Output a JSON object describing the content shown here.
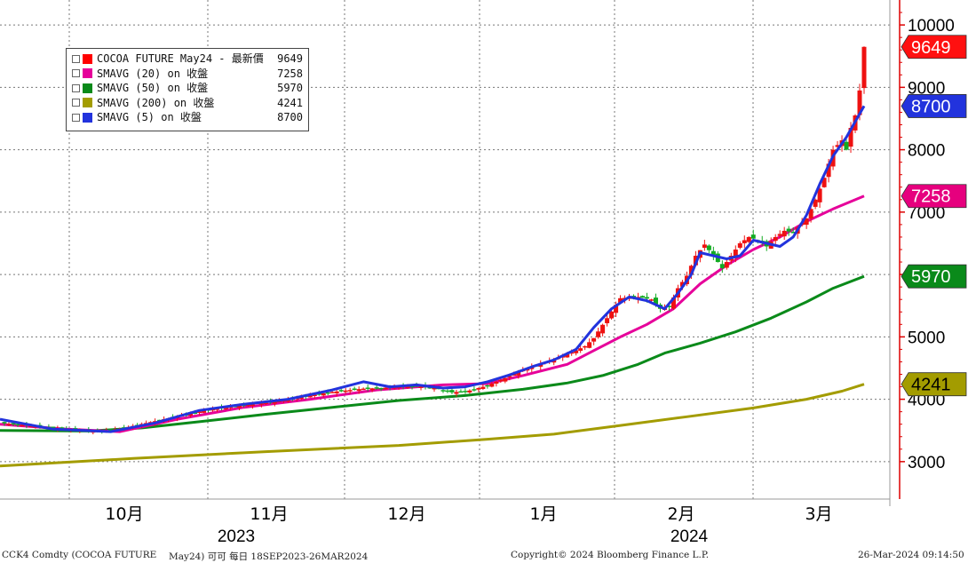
{
  "chart_data": {
    "type": "candlestick",
    "title": "",
    "ylim": [
      2400,
      10400
    ],
    "y_ticks": [
      3000,
      4000,
      5000,
      6000,
      7000,
      8000,
      9000,
      10000
    ],
    "x_month_labels": [
      "10月",
      "11月",
      "12月",
      "1月",
      "2月",
      "3月"
    ],
    "x_year_labels": [
      "2023",
      "2024"
    ],
    "legend": [
      {
        "label": "COCOA FUTURE May24 - 最新價",
        "value": "9649",
        "color": "#ff0000"
      },
      {
        "label": "SMAVG (20)  on 收盤",
        "value": "7258",
        "color": "#e6009a"
      },
      {
        "label": "SMAVG (50)  on 收盤",
        "value": "5970",
        "color": "#0a8a1a"
      },
      {
        "label": "SMAVG (200)  on 收盤",
        "value": "4241",
        "color": "#a39c00"
      },
      {
        "label": "SMAVG (5)  on 收盤",
        "value": "8700",
        "color": "#2233dd"
      }
    ],
    "price_tags": [
      {
        "value": "9649",
        "y": 9649,
        "bg": "#ff1010",
        "fg": "#ffffff"
      },
      {
        "value": "8700",
        "y": 8700,
        "bg": "#2233dd",
        "fg": "#ffffff"
      },
      {
        "value": "7258",
        "y": 7258,
        "bg": "#e6007e",
        "fg": "#ffffff"
      },
      {
        "value": "5970",
        "y": 5970,
        "bg": "#0a8a1a",
        "fg": "#ffffff"
      },
      {
        "value": "4241",
        "y": 4241,
        "bg": "#a39c00",
        "fg": "#000000"
      }
    ],
    "price_path": [
      [
        0,
        3620
      ],
      [
        12,
        3540
      ],
      [
        22,
        3480
      ],
      [
        28,
        3540
      ],
      [
        33,
        3620
      ],
      [
        37,
        3680
      ],
      [
        42,
        3760
      ],
      [
        47,
        3830
      ],
      [
        52,
        3880
      ],
      [
        57,
        3920
      ],
      [
        62,
        3960
      ],
      [
        66,
        4010
      ],
      [
        70,
        4060
      ],
      [
        74,
        4110
      ],
      [
        78,
        4140
      ],
      [
        82,
        4170
      ],
      [
        86,
        4180
      ],
      [
        90,
        4200
      ],
      [
        94,
        4210
      ],
      [
        98,
        4180
      ],
      [
        102,
        4110
      ],
      [
        106,
        4140
      ],
      [
        110,
        4220
      ],
      [
        114,
        4340
      ],
      [
        118,
        4470
      ],
      [
        122,
        4570
      ],
      [
        125,
        4640
      ],
      [
        128,
        4720
      ],
      [
        132,
        4850
      ],
      [
        134,
        4980
      ],
      [
        137,
        5300
      ],
      [
        140,
        5620
      ],
      [
        144,
        5640
      ],
      [
        147,
        5600
      ],
      [
        149,
        5450
      ],
      [
        151,
        5480
      ],
      [
        153,
        5780
      ],
      [
        155,
        5980
      ],
      [
        157,
        6300
      ],
      [
        159,
        6480
      ],
      [
        161,
        6300
      ],
      [
        163,
        6100
      ],
      [
        165,
        6300
      ],
      [
        167,
        6500
      ],
      [
        169,
        6600
      ],
      [
        171,
        6550
      ],
      [
        173,
        6450
      ],
      [
        175,
        6600
      ],
      [
        177,
        6700
      ],
      [
        179,
        6680
      ],
      [
        182,
        6900
      ],
      [
        184,
        7200
      ],
      [
        186,
        7550
      ],
      [
        188,
        8000
      ],
      [
        190,
        8150
      ],
      [
        191,
        8000
      ],
      [
        192,
        8350
      ],
      [
        193,
        8550
      ],
      [
        194,
        8950
      ],
      [
        195,
        9649
      ]
    ],
    "sma5": [
      [
        0,
        3680
      ],
      [
        12,
        3520
      ],
      [
        25,
        3480
      ],
      [
        35,
        3620
      ],
      [
        45,
        3820
      ],
      [
        55,
        3920
      ],
      [
        65,
        4000
      ],
      [
        75,
        4150
      ],
      [
        82,
        4280
      ],
      [
        88,
        4200
      ],
      [
        94,
        4230
      ],
      [
        100,
        4180
      ],
      [
        105,
        4200
      ],
      [
        110,
        4280
      ],
      [
        115,
        4390
      ],
      [
        120,
        4520
      ],
      [
        125,
        4630
      ],
      [
        130,
        4800
      ],
      [
        134,
        5150
      ],
      [
        138,
        5450
      ],
      [
        142,
        5640
      ],
      [
        146,
        5580
      ],
      [
        150,
        5450
      ],
      [
        153,
        5700
      ],
      [
        156,
        6000
      ],
      [
        158,
        6350
      ],
      [
        161,
        6300
      ],
      [
        164,
        6250
      ],
      [
        167,
        6300
      ],
      [
        170,
        6550
      ],
      [
        173,
        6500
      ],
      [
        176,
        6450
      ],
      [
        179,
        6600
      ],
      [
        182,
        6950
      ],
      [
        185,
        7450
      ],
      [
        188,
        7900
      ],
      [
        191,
        8200
      ],
      [
        195,
        8700
      ]
    ],
    "sma20": [
      [
        0,
        3600
      ],
      [
        15,
        3520
      ],
      [
        27,
        3480
      ],
      [
        40,
        3680
      ],
      [
        55,
        3870
      ],
      [
        70,
        4000
      ],
      [
        85,
        4150
      ],
      [
        100,
        4230
      ],
      [
        110,
        4250
      ],
      [
        118,
        4380
      ],
      [
        128,
        4560
      ],
      [
        134,
        4780
      ],
      [
        140,
        5000
      ],
      [
        146,
        5200
      ],
      [
        152,
        5450
      ],
      [
        158,
        5850
      ],
      [
        164,
        6150
      ],
      [
        170,
        6400
      ],
      [
        176,
        6600
      ],
      [
        182,
        6850
      ],
      [
        188,
        7050
      ],
      [
        195,
        7258
      ]
    ],
    "sma50": [
      [
        0,
        3500
      ],
      [
        20,
        3490
      ],
      [
        32,
        3540
      ],
      [
        45,
        3640
      ],
      [
        60,
        3760
      ],
      [
        75,
        3870
      ],
      [
        90,
        3980
      ],
      [
        105,
        4060
      ],
      [
        118,
        4160
      ],
      [
        128,
        4260
      ],
      [
        136,
        4380
      ],
      [
        144,
        4560
      ],
      [
        150,
        4740
      ],
      [
        158,
        4900
      ],
      [
        166,
        5080
      ],
      [
        174,
        5300
      ],
      [
        182,
        5560
      ],
      [
        188,
        5780
      ],
      [
        195,
        5970
      ]
    ],
    "sma200": [
      [
        0,
        2930
      ],
      [
        30,
        3050
      ],
      [
        60,
        3160
      ],
      [
        90,
        3260
      ],
      [
        110,
        3360
      ],
      [
        125,
        3440
      ],
      [
        140,
        3580
      ],
      [
        155,
        3720
      ],
      [
        170,
        3860
      ],
      [
        182,
        4000
      ],
      [
        190,
        4130
      ],
      [
        195,
        4241
      ]
    ],
    "footer_left": "CCK4 Comdty (COCOA FUTURE",
    "footer_mid": "May24) 可可  每日 18SEP2023-26MAR2024",
    "footer_copy": "Copyright© 2024 Bloomberg Finance L.P.",
    "footer_time": "26-Mar-2024 09:14:50"
  }
}
